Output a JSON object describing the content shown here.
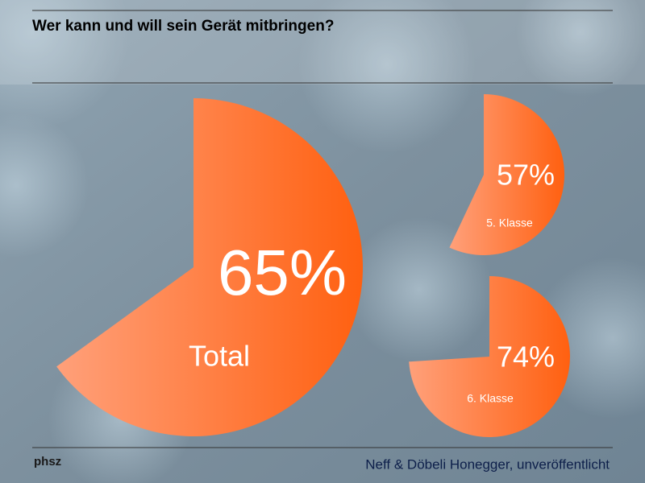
{
  "title": "Wer kann und will sein Gerät mitbringen?",
  "footer": {
    "logo": "phsz",
    "source": "Neff & Döbeli Honegger, unveröffentlicht"
  },
  "chart_data": [
    {
      "type": "pie",
      "label": "Total",
      "values": [
        65
      ],
      "value_labels": [
        "65%"
      ],
      "color": "#ff6a1e"
    },
    {
      "type": "pie",
      "label": "5. Klasse",
      "values": [
        57
      ],
      "value_labels": [
        "57%"
      ],
      "color": "#ff6a1e"
    },
    {
      "type": "pie",
      "label": "6. Klasse",
      "values": [
        74
      ],
      "value_labels": [
        "74%"
      ],
      "color": "#ff6a1e"
    }
  ]
}
